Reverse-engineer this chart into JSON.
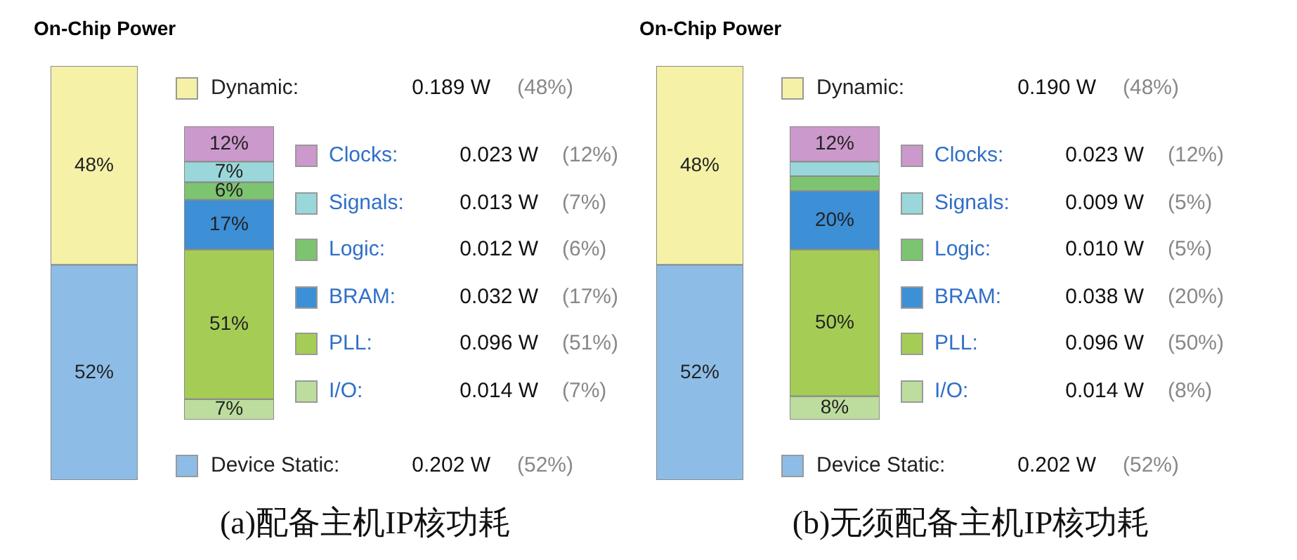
{
  "chart_data": [
    {
      "type": "bar",
      "title": "On-Chip Power",
      "stacked": true,
      "legend": "right",
      "categories": [
        null
      ],
      "series": [
        {
          "name": "Device Static:",
          "color": "#8dbde6",
          "values": [
            52
          ],
          "value_labels": [
            "52%"
          ]
        },
        {
          "name": "Dynamic:",
          "color": "#f5f2a8",
          "values": [
            48
          ],
          "value_labels": [
            "48%"
          ]
        }
      ],
      "annotations": [
        "0.202 W",
        "(52%)",
        "0.189 W",
        "(48%)",
        "(a)配备主机IP核功耗"
      ]
    },
    {
      "type": "bar",
      "stacked": true,
      "legend": "right",
      "categories": [
        null
      ],
      "series": [
        {
          "name": "I/O:",
          "color": "#bcdd9e",
          "values": [
            7
          ],
          "value_labels": [
            "7%"
          ]
        },
        {
          "name": "PLL:",
          "color": "#a5cd55",
          "values": [
            51
          ],
          "value_labels": [
            "51%"
          ]
        },
        {
          "name": "BRAM:",
          "color": "#3d8fd6",
          "values": [
            17
          ],
          "value_labels": [
            "17%"
          ]
        },
        {
          "name": "Logic:",
          "color": "#7dc470",
          "values": [
            6
          ],
          "value_labels": [
            "6%"
          ]
        },
        {
          "name": "Signals:",
          "color": "#9ad7da",
          "values": [
            7
          ],
          "value_labels": [
            "7%"
          ]
        },
        {
          "name": "Clocks:",
          "color": "#cc99cc",
          "values": [
            12
          ],
          "value_labels": [
            "12%"
          ]
        }
      ],
      "annotations": [
        "0.014 W",
        "(7%)",
        "0.096 W",
        "(51%)",
        "0.032 W",
        "(17%)",
        "0.012 W",
        "(6%)",
        "0.013 W",
        "(7%)",
        "0.023 W",
        "(12%)"
      ]
    },
    {
      "type": "bar",
      "title": "On-Chip Power",
      "stacked": true,
      "legend": "right",
      "categories": [
        null
      ],
      "series": [
        {
          "name": "Device Static:",
          "color": "#8dbde6",
          "values": [
            52
          ],
          "value_labels": [
            "52%"
          ]
        },
        {
          "name": "Dynamic:",
          "color": "#f5f2a8",
          "values": [
            48
          ],
          "value_labels": [
            "48%"
          ]
        }
      ],
      "annotations": [
        "0.202 W",
        "(52%)",
        "0.190 W",
        "(48%)",
        "(b)无须配备主机IP核功耗"
      ]
    },
    {
      "type": "bar",
      "stacked": true,
      "legend": "right",
      "categories": [
        null
      ],
      "series": [
        {
          "name": "I/O:",
          "color": "#bcdd9e",
          "values": [
            8
          ],
          "value_labels": [
            "8%"
          ]
        },
        {
          "name": "PLL:",
          "color": "#a5cd55",
          "values": [
            50
          ],
          "value_labels": [
            "50%"
          ]
        },
        {
          "name": "BRAM:",
          "color": "#3d8fd6",
          "values": [
            20
          ],
          "value_labels": [
            "20%"
          ]
        },
        {
          "name": "Logic:",
          "color": "#7dc470",
          "values": [
            5
          ],
          "value_labels": [
            null
          ]
        },
        {
          "name": "Signals:",
          "color": "#9ad7da",
          "values": [
            5
          ],
          "value_labels": [
            null
          ]
        },
        {
          "name": "Clocks:",
          "color": "#cc99cc",
          "values": [
            12
          ],
          "value_labels": [
            "12%"
          ]
        }
      ],
      "annotations": [
        "0.014 W",
        "(8%)",
        "0.096 W",
        "(50%)",
        "0.038 W",
        "(20%)",
        "0.010 W",
        "(5%)",
        "0.009 W",
        "(5%)",
        "0.023 W",
        "(12%)"
      ]
    }
  ]
}
